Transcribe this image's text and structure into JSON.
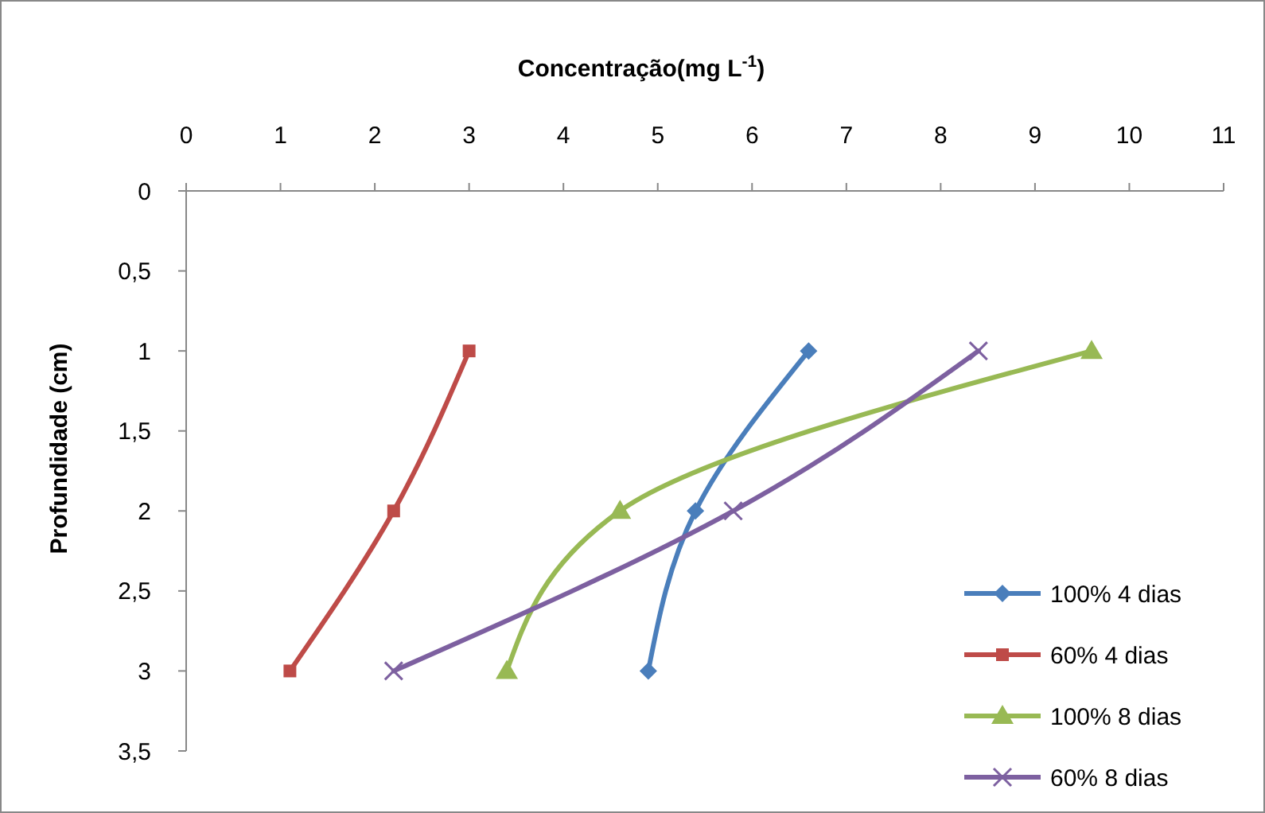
{
  "chart_data": {
    "type": "line",
    "xlabel": "Concentração(mg L$^{-1}$)",
    "ylabel": "Profundidade (cm)",
    "xlim": [
      0,
      11
    ],
    "xticks": [
      0,
      1,
      2,
      3,
      4,
      5,
      6,
      7,
      8,
      9,
      10,
      11
    ],
    "ylim": [
      3.5,
      0
    ],
    "yticks": [
      0,
      {
        "value": 0.5,
        "label": "0,5"
      },
      1,
      {
        "value": 1.5,
        "label": "1,5"
      },
      2,
      {
        "value": 2.5,
        "label": "2,5"
      },
      3,
      {
        "value": 3.5,
        "label": "3,5"
      }
    ],
    "grid": false,
    "legend": "bottom right",
    "series": [
      {
        "name": "100% 4 dias",
        "color": "#4a7ebb",
        "marker": "diamond",
        "x": [
          6.6,
          5.4,
          4.9
        ],
        "values": [
          1,
          2,
          3
        ]
      },
      {
        "name": "60% 4 dias",
        "color": "#be4b48",
        "marker": "square",
        "x": [
          3.0,
          2.2,
          1.1
        ],
        "values": [
          1,
          2,
          3
        ]
      },
      {
        "name": "100% 8 dias",
        "color": "#98b954",
        "marker": "triangle",
        "x": [
          9.6,
          4.6,
          3.4
        ],
        "values": [
          1,
          2,
          3
        ]
      },
      {
        "name": "60% 8 dias",
        "color": "#7d60a0",
        "marker": "cross",
        "x": [
          8.4,
          5.8,
          2.2
        ],
        "values": [
          1,
          2,
          3
        ]
      }
    ]
  }
}
